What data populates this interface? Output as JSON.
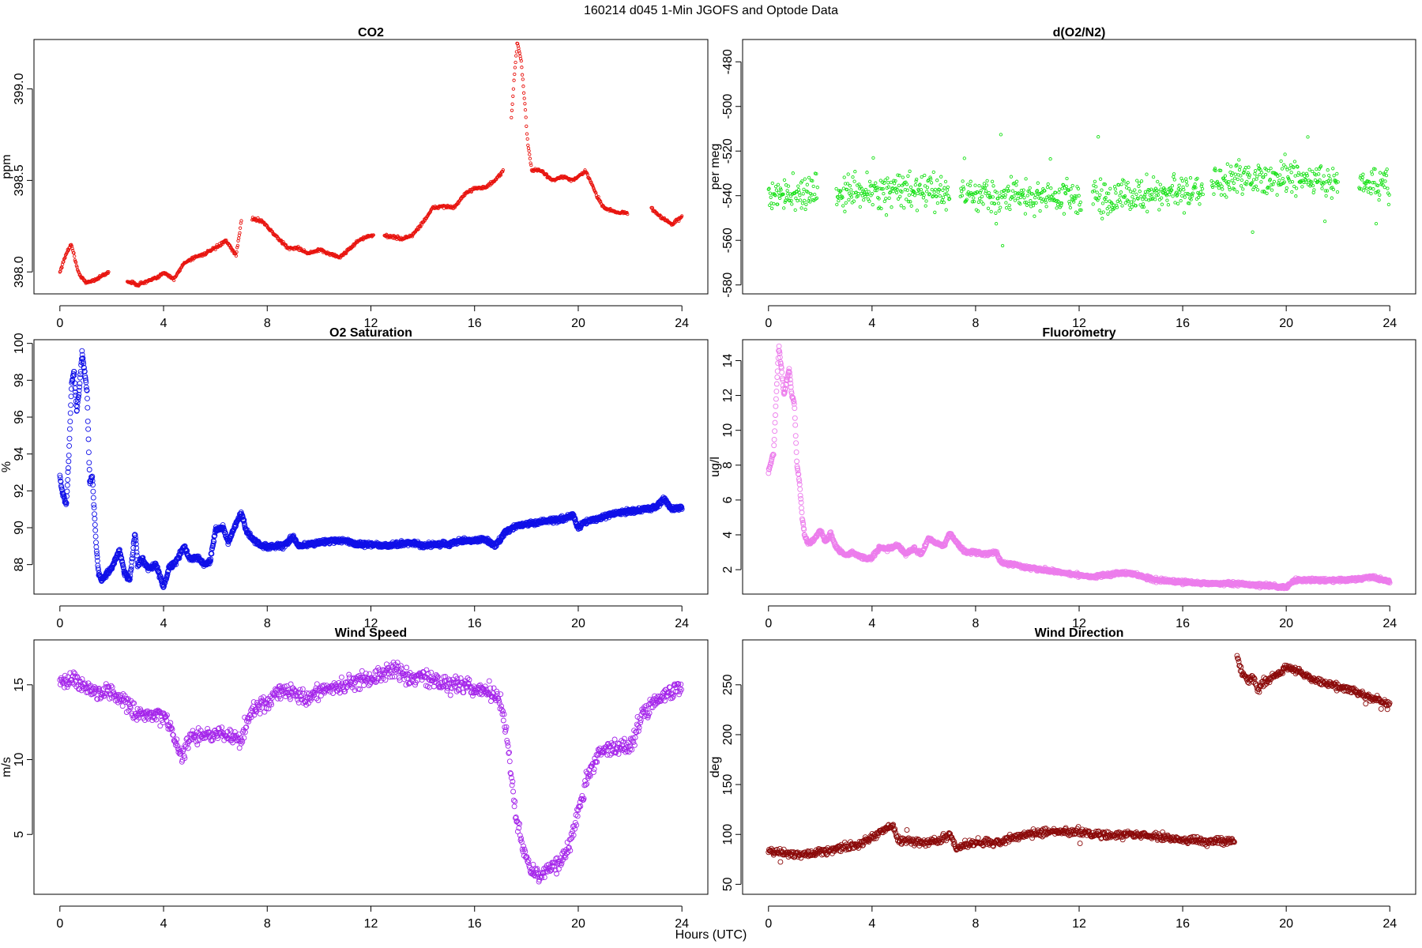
{
  "figure": {
    "title": "160214   d045   1-Min  JGOFS and Optode Data",
    "xlabel": "Hours (UTC)"
  },
  "chart_data": [
    {
      "type": "scatter",
      "title": "CO2",
      "xlabel": "",
      "ylabel": "ppm",
      "xlim": [
        -1,
        25
      ],
      "ylim": [
        397.88,
        399.27
      ],
      "xticks": [
        0,
        4,
        8,
        12,
        16,
        20,
        24
      ],
      "yticks": [
        398.0,
        398.5,
        399.0
      ],
      "ytick_labels": [
        "398.0",
        "398.5",
        "399.0"
      ],
      "color": "#e8140f",
      "marker_size": 1.7,
      "gaps": [
        [
          1.9,
          2.6
        ],
        [
          7.0,
          7.4
        ],
        [
          12.1,
          12.5
        ],
        [
          17.1,
          17.4
        ],
        [
          21.9,
          22.8
        ]
      ],
      "series": [
        {
          "x": [
            0.0,
            0.3,
            0.45,
            0.7,
            1.0,
            1.4,
            1.9,
            2.6,
            3.0,
            3.4,
            3.8,
            4.0,
            4.4,
            4.8,
            5.2,
            5.6,
            6.0,
            6.4,
            6.8,
            7.0,
            7.4,
            7.8,
            8.3,
            8.8,
            9.2,
            9.6,
            10.0,
            10.4,
            10.8,
            11.2,
            11.6,
            12.1,
            12.5,
            12.9,
            13.2,
            13.6,
            14.0,
            14.4,
            14.8,
            15.2,
            15.6,
            16.0,
            16.4,
            16.8,
            17.1,
            17.4,
            17.55,
            17.65,
            17.8,
            17.95,
            18.05,
            18.2,
            18.6,
            19.0,
            19.4,
            19.8,
            20.3,
            20.7,
            21.0,
            21.4,
            21.9,
            22.8,
            23.2,
            23.6,
            24.0
          ],
          "y": [
            398.0,
            398.12,
            398.15,
            398.0,
            397.94,
            397.96,
            398.0,
            397.95,
            397.93,
            397.95,
            397.97,
            398.0,
            397.96,
            398.05,
            398.08,
            398.1,
            398.13,
            398.17,
            398.09,
            398.28,
            398.29,
            398.28,
            398.2,
            398.13,
            398.13,
            398.1,
            398.12,
            398.1,
            398.08,
            398.13,
            398.18,
            398.2,
            398.2,
            398.19,
            398.18,
            398.2,
            398.27,
            398.35,
            398.36,
            398.35,
            398.42,
            398.46,
            398.46,
            398.5,
            398.55,
            398.8,
            399.1,
            399.26,
            399.15,
            398.9,
            398.7,
            398.56,
            398.55,
            398.5,
            398.52,
            398.5,
            398.55,
            398.42,
            398.35,
            398.33,
            398.32,
            398.35,
            398.3,
            398.26,
            398.3
          ]
        }
      ]
    },
    {
      "type": "scatter",
      "title": "d(O2/N2)",
      "xlabel": "",
      "ylabel": "per meg",
      "xlim": [
        -1,
        25
      ],
      "ylim": [
        -584,
        -470
      ],
      "xticks": [
        0,
        4,
        8,
        12,
        16,
        20,
        24
      ],
      "yticks": [
        -580,
        -560,
        -540,
        -520,
        -500,
        -480
      ],
      "ytick_labels": [
        "-580",
        "-560",
        "-540",
        "-520",
        "-500",
        "-480"
      ],
      "color": "#18e118",
      "marker_size": 1.7,
      "gaps": [
        [
          1.9,
          2.6
        ],
        [
          7.0,
          7.4
        ],
        [
          12.1,
          12.5
        ],
        [
          16.8,
          17.1
        ],
        [
          22.0,
          22.8
        ]
      ],
      "series": [
        {
          "x": [
            0,
            2,
            4,
            6,
            8,
            10,
            12,
            14,
            16,
            18,
            20,
            22,
            24
          ],
          "y": [
            -540,
            -538,
            -538,
            -538,
            -539,
            -540,
            -541,
            -540,
            -539,
            -532,
            -532,
            -534,
            -536
          ]
        }
      ]
    },
    {
      "type": "scatter",
      "title": "O2 Saturation",
      "xlabel": "",
      "ylabel": "%",
      "xlim": [
        -1,
        25
      ],
      "ylim": [
        86.4,
        100.2
      ],
      "xticks": [
        0,
        4,
        8,
        12,
        16,
        20,
        24
      ],
      "yticks": [
        88,
        90,
        92,
        94,
        96,
        98,
        100
      ],
      "ytick_labels": [
        "88",
        "90",
        "92",
        "94",
        "96",
        "98",
        "100"
      ],
      "color": "#1010e8",
      "marker_size": 3.0,
      "gaps": [],
      "series": [
        {
          "x": [
            0.0,
            0.1,
            0.25,
            0.35,
            0.45,
            0.55,
            0.65,
            0.75,
            0.85,
            0.95,
            1.05,
            1.15,
            1.25,
            1.4,
            1.5,
            1.6,
            1.75,
            2.0,
            2.3,
            2.5,
            2.7,
            2.9,
            3.0,
            3.2,
            3.4,
            3.7,
            4.0,
            4.2,
            4.5,
            4.8,
            5.0,
            5.3,
            5.6,
            5.8,
            6.0,
            6.3,
            6.5,
            6.8,
            7.0,
            7.2,
            7.5,
            7.8,
            8.2,
            8.6,
            9.0,
            9.2,
            9.6,
            10.0,
            10.5,
            11.0,
            11.5,
            12.0,
            12.5,
            13.0,
            13.5,
            14.0,
            14.5,
            15.0,
            15.5,
            16.0,
            16.4,
            16.8,
            17.2,
            17.6,
            18.0,
            18.5,
            19.0,
            19.5,
            19.8,
            20.0,
            20.2,
            20.5,
            21.0,
            21.5,
            22.0,
            22.5,
            23.0,
            23.3,
            23.6,
            24.0
          ],
          "y": [
            92.8,
            91.8,
            91.3,
            94.0,
            97.8,
            98.5,
            96.3,
            97.5,
            99.5,
            98.5,
            97.3,
            92.5,
            92.8,
            89.0,
            87.5,
            87.2,
            87.4,
            87.8,
            88.8,
            87.5,
            87.2,
            89.8,
            88.0,
            88.3,
            87.8,
            88.0,
            86.8,
            87.8,
            88.2,
            89.0,
            88.3,
            88.4,
            88.0,
            88.2,
            89.9,
            90.0,
            89.2,
            90.2,
            90.8,
            89.8,
            89.3,
            89.0,
            89.0,
            89.0,
            89.5,
            89.0,
            89.1,
            89.2,
            89.3,
            89.3,
            89.1,
            89.1,
            89.0,
            89.1,
            89.2,
            89.0,
            89.1,
            89.1,
            89.3,
            89.3,
            89.4,
            89.0,
            89.8,
            90.1,
            90.2,
            90.3,
            90.4,
            90.5,
            90.7,
            90.0,
            90.3,
            90.4,
            90.6,
            90.8,
            90.9,
            91.0,
            91.1,
            91.6,
            91.0,
            91.1
          ]
        }
      ]
    },
    {
      "type": "scatter",
      "title": "Fluorometry",
      "xlabel": "",
      "ylabel": "ug/l",
      "xlim": [
        -1,
        25
      ],
      "ylim": [
        0.6,
        15.2
      ],
      "xticks": [
        0,
        4,
        8,
        12,
        16,
        20,
        24
      ],
      "yticks": [
        2,
        4,
        6,
        8,
        10,
        12,
        14
      ],
      "ytick_labels": [
        "2",
        "4",
        "6",
        "8",
        "10",
        "12",
        "14"
      ],
      "color": "#ec7cec",
      "marker_size": 3.0,
      "gaps": [],
      "series": [
        {
          "x": [
            0.0,
            0.1,
            0.2,
            0.3,
            0.4,
            0.5,
            0.6,
            0.7,
            0.8,
            0.9,
            1.0,
            1.1,
            1.2,
            1.3,
            1.4,
            1.5,
            1.6,
            1.7,
            1.8,
            2.0,
            2.2,
            2.4,
            2.6,
            2.8,
            3.0,
            3.2,
            3.5,
            3.8,
            4.0,
            4.3,
            4.6,
            5.0,
            5.3,
            5.6,
            5.9,
            6.2,
            6.5,
            6.8,
            7.0,
            7.3,
            7.6,
            8.0,
            8.4,
            8.8,
            9.0,
            9.5,
            10.0,
            11.0,
            12.0,
            12.5,
            13.0,
            13.5,
            14.0,
            15.0,
            16.0,
            17.0,
            18.0,
            19.0,
            20.0,
            20.3,
            21.0,
            22.0,
            23.0,
            23.3,
            24.0
          ],
          "y": [
            7.6,
            8.2,
            8.7,
            12.0,
            14.8,
            13.5,
            12.0,
            12.8,
            13.5,
            12.0,
            11.5,
            8.0,
            7.0,
            5.0,
            4.0,
            3.6,
            3.5,
            3.7,
            3.8,
            4.3,
            3.6,
            4.1,
            3.3,
            3.0,
            2.8,
            3.0,
            2.8,
            2.6,
            2.7,
            3.3,
            3.2,
            3.4,
            2.9,
            3.2,
            2.9,
            3.8,
            3.5,
            3.4,
            4.1,
            3.5,
            3.0,
            3.0,
            2.9,
            3.0,
            2.4,
            2.3,
            2.1,
            1.9,
            1.7,
            1.6,
            1.7,
            1.8,
            1.8,
            1.4,
            1.3,
            1.2,
            1.2,
            1.1,
            1.0,
            1.4,
            1.4,
            1.4,
            1.5,
            1.6,
            1.3
          ]
        }
      ]
    },
    {
      "type": "scatter",
      "title": "Wind Speed",
      "xlabel": "",
      "ylabel": "m/s",
      "xlim": [
        -1,
        25
      ],
      "ylim": [
        1.0,
        18.0
      ],
      "xticks": [
        0,
        4,
        8,
        12,
        16,
        20,
        24
      ],
      "yticks": [
        5,
        10,
        15
      ],
      "ytick_labels": [
        "5",
        "10",
        "15"
      ],
      "color": "#a424ea",
      "marker_size": 3.0,
      "gaps": [],
      "series": [
        {
          "x": [
            0.0,
            0.5,
            1.0,
            1.5,
            2.0,
            2.5,
            3.0,
            3.5,
            4.0,
            4.3,
            4.6,
            4.8,
            5.0,
            5.5,
            6.0,
            6.5,
            7.0,
            7.5,
            8.0,
            8.5,
            9.0,
            9.5,
            10.0,
            10.5,
            11.0,
            11.5,
            12.0,
            12.5,
            13.0,
            13.5,
            14.0,
            14.5,
            15.0,
            15.5,
            16.0,
            16.5,
            17.0,
            17.3,
            17.6,
            17.9,
            18.2,
            18.5,
            18.8,
            19.0,
            19.3,
            19.6,
            20.0,
            20.4,
            20.8,
            21.0,
            21.5,
            22.0,
            22.5,
            23.0,
            23.5,
            24.0
          ],
          "y": [
            15.0,
            15.5,
            14.8,
            14.5,
            14.5,
            13.8,
            13.0,
            12.8,
            13.0,
            12.0,
            10.5,
            10.5,
            11.5,
            11.5,
            11.8,
            11.5,
            11.5,
            13.5,
            13.8,
            14.8,
            14.5,
            14.0,
            14.5,
            14.8,
            15.0,
            15.2,
            15.5,
            15.8,
            16.0,
            15.5,
            15.5,
            15.3,
            15.0,
            15.0,
            14.8,
            14.5,
            14.0,
            11.0,
            6.0,
            4.0,
            2.5,
            2.3,
            2.5,
            3.0,
            3.2,
            4.0,
            6.5,
            9.0,
            10.5,
            10.8,
            10.8,
            11.0,
            13.0,
            14.0,
            14.5,
            15.0
          ]
        }
      ]
    },
    {
      "type": "scatter",
      "title": "Wind Direction",
      "xlabel": "",
      "ylabel": "deg",
      "xlim": [
        -1,
        25
      ],
      "ylim": [
        40,
        295
      ],
      "xticks": [
        0,
        4,
        8,
        12,
        16,
        20,
        24
      ],
      "yticks": [
        50,
        100,
        150,
        200,
        250
      ],
      "ytick_labels": [
        "50",
        "100",
        "150",
        "200",
        "250"
      ],
      "color": "#8b0a0a",
      "marker_size": 3.0,
      "gaps": [],
      "series": [
        {
          "x": [
            0.0,
            0.5,
            1.0,
            1.5,
            2.0,
            2.5,
            3.0,
            3.5,
            4.0,
            4.5,
            4.8,
            5.0,
            5.5,
            6.0,
            6.5,
            7.0,
            7.3,
            7.6,
            8.0,
            8.5,
            9.0,
            9.5,
            10.0,
            10.5,
            11.0,
            11.5,
            12.0,
            12.5,
            13.0,
            14.0,
            15.0,
            16.0,
            17.0,
            17.5,
            18.0
          ],
          "y": [
            83,
            82,
            80,
            80,
            83,
            85,
            88,
            90,
            97,
            105,
            110,
            95,
            93,
            92,
            93,
            100,
            85,
            90,
            92,
            92,
            93,
            97,
            100,
            102,
            103,
            103,
            102,
            100,
            99,
            100,
            98,
            95,
            93,
            93,
            94
          ]
        },
        {
          "x": [
            18.1,
            18.3,
            18.5,
            18.7,
            18.9,
            19.1,
            19.3,
            19.5,
            19.7,
            20.0,
            20.3,
            20.6,
            21.0,
            21.5,
            22.0,
            22.5,
            23.0,
            23.5,
            24.0
          ],
          "y": [
            278,
            262,
            255,
            258,
            245,
            252,
            255,
            258,
            262,
            268,
            265,
            262,
            255,
            252,
            248,
            245,
            240,
            235,
            230
          ]
        }
      ]
    }
  ]
}
